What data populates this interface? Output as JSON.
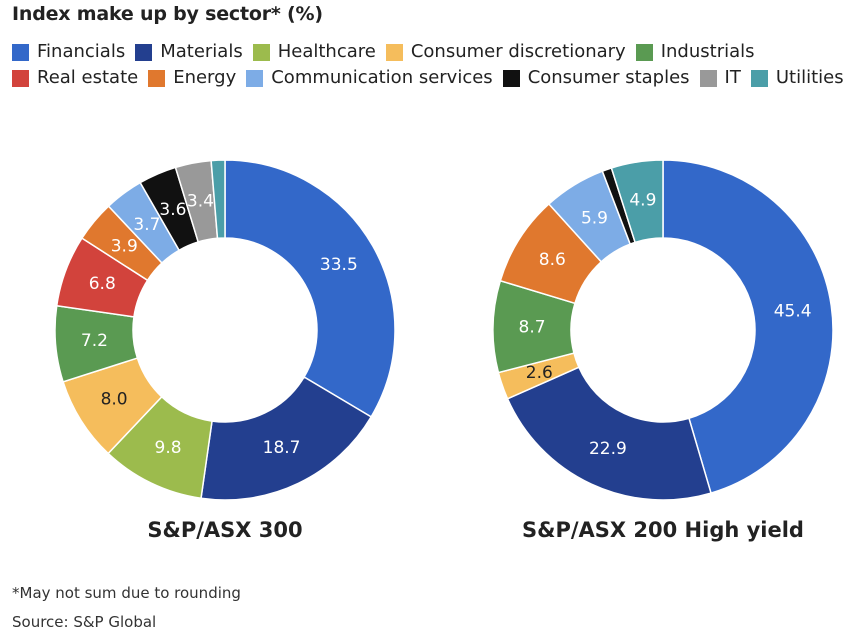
{
  "title": "Index make up by sector* (%)",
  "legend": [
    {
      "label": "Financials",
      "color": "#3368c9"
    },
    {
      "label": "Materials",
      "color": "#233f8f"
    },
    {
      "label": "Healthcare",
      "color": "#9cbb4d"
    },
    {
      "label": "Consumer discretionary",
      "color": "#f5bd5c"
    },
    {
      "label": "Industrials",
      "color": "#5a9a52"
    },
    {
      "label": "Real estate",
      "color": "#d2433c"
    },
    {
      "label": "Energy",
      "color": "#e0782e"
    },
    {
      "label": "Communication services",
      "color": "#7dace6"
    },
    {
      "label": "Consumer staples",
      "color": "#111111"
    },
    {
      "label": "IT",
      "color": "#999999"
    },
    {
      "label": "Utilities",
      "color": "#4b9ea8"
    }
  ],
  "chart_data": [
    {
      "type": "pie",
      "donut": true,
      "title": "S&P/ASX 300",
      "slices": [
        {
          "sector": "Financials",
          "value": 33.5,
          "label": "33.5"
        },
        {
          "sector": "Materials",
          "value": 18.7,
          "label": "18.7"
        },
        {
          "sector": "Healthcare",
          "value": 9.8,
          "label": "9.8"
        },
        {
          "sector": "Consumer discretionary",
          "value": 8.0,
          "label": "8.0"
        },
        {
          "sector": "Industrials",
          "value": 7.2,
          "label": "7.2"
        },
        {
          "sector": "Real estate",
          "value": 6.8,
          "label": "6.8"
        },
        {
          "sector": "Energy",
          "value": 3.9,
          "label": "3.9"
        },
        {
          "sector": "Communication services",
          "value": 3.7,
          "label": "3.7"
        },
        {
          "sector": "Consumer staples",
          "value": 3.6,
          "label": "3.6"
        },
        {
          "sector": "IT",
          "value": 3.4,
          "label": "3.4"
        },
        {
          "sector": "Utilities",
          "value": 1.3,
          "label": ""
        }
      ]
    },
    {
      "type": "pie",
      "donut": true,
      "title": "S&P/ASX 200 High yield",
      "slices": [
        {
          "sector": "Financials",
          "value": 45.4,
          "label": "45.4"
        },
        {
          "sector": "Materials",
          "value": 22.9,
          "label": "22.9"
        },
        {
          "sector": "Consumer discretionary",
          "value": 2.6,
          "label": "2.6"
        },
        {
          "sector": "Industrials",
          "value": 8.7,
          "label": "8.7"
        },
        {
          "sector": "Energy",
          "value": 8.6,
          "label": "8.6"
        },
        {
          "sector": "Communication services",
          "value": 5.9,
          "label": "5.9"
        },
        {
          "sector": "Consumer staples",
          "value": 0.9,
          "label": ""
        },
        {
          "sector": "Utilities",
          "value": 4.9,
          "label": "4.9"
        }
      ]
    }
  ],
  "footnote": "*May not sum due to rounding",
  "source": "Source: S&P Global"
}
